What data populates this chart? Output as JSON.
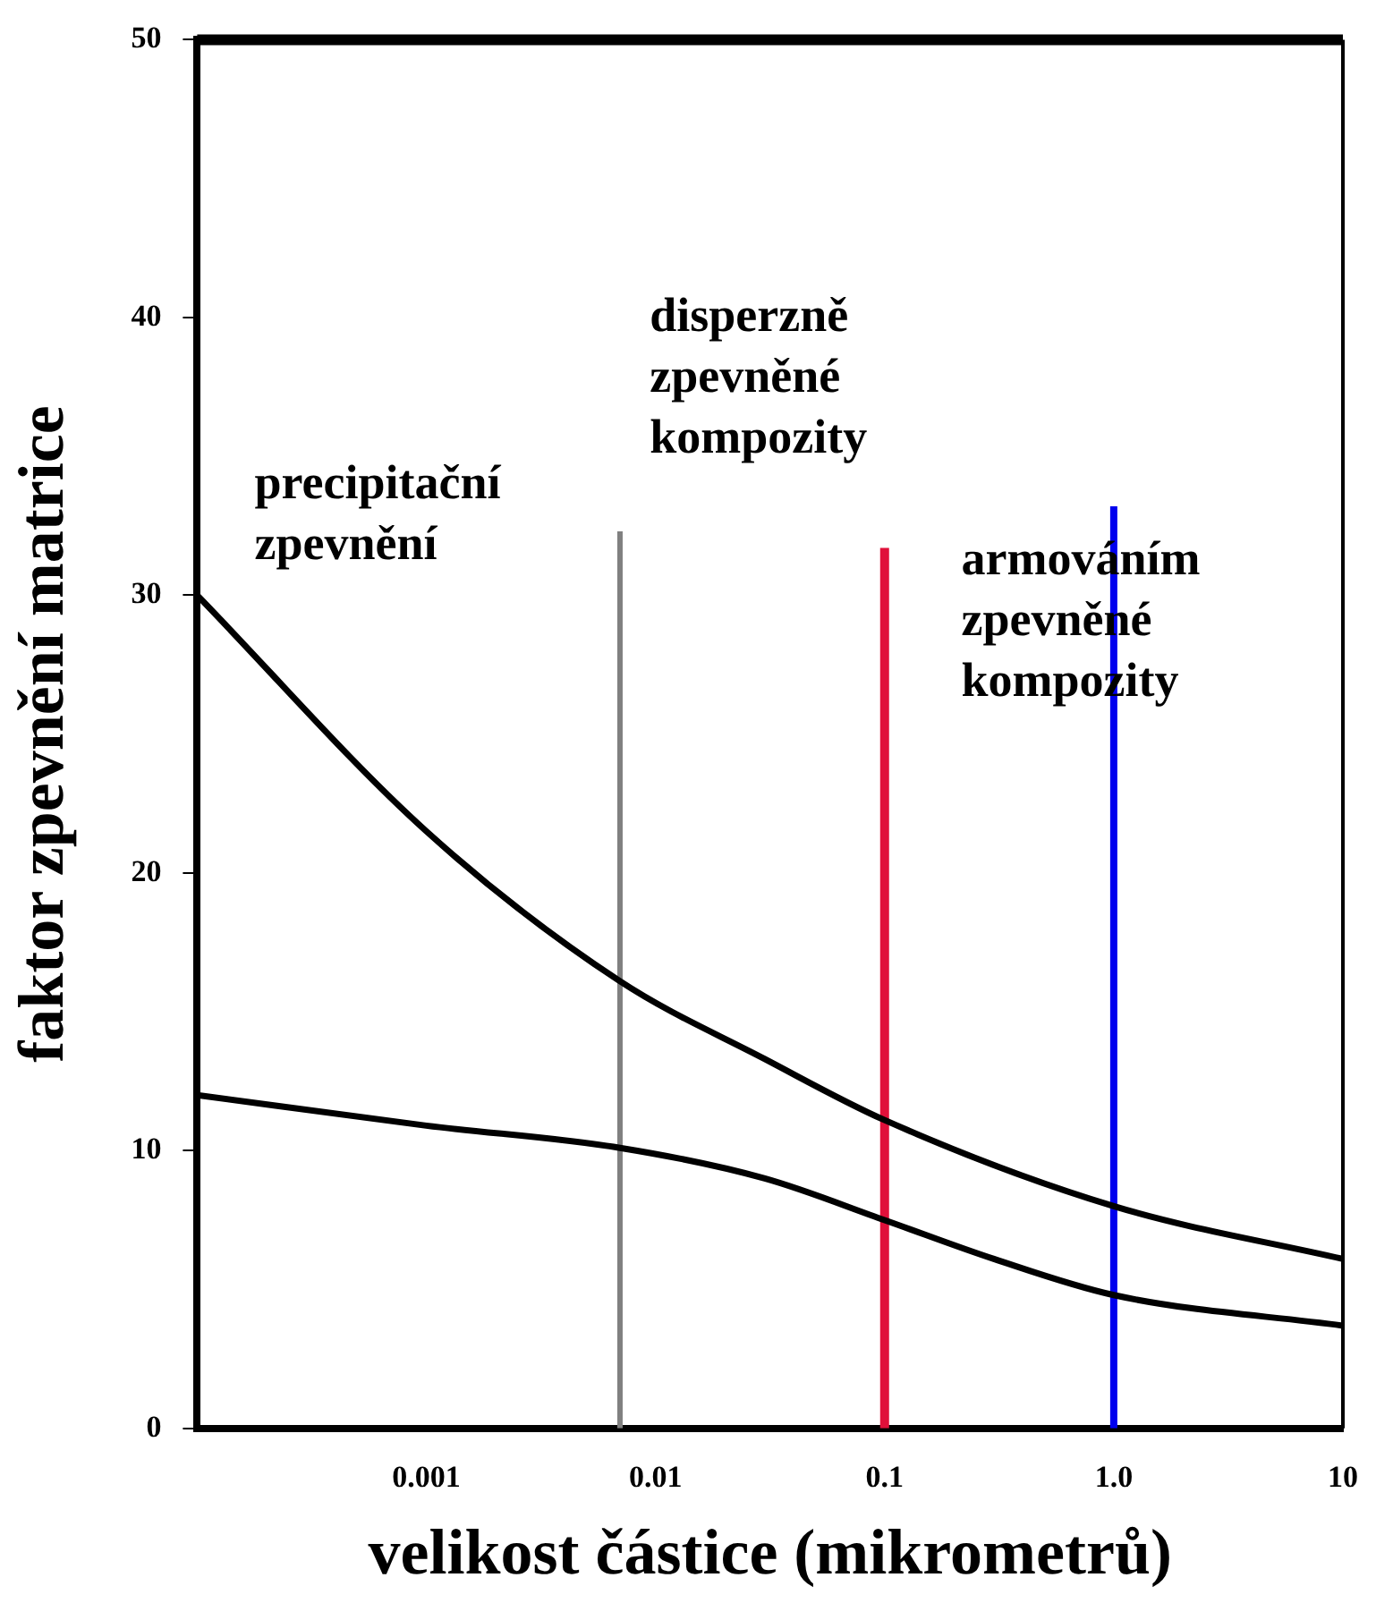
{
  "chart_data": {
    "type": "line",
    "xlabel": "velikost částice (mikrometrů)",
    "ylabel": "faktor zpevnění matrice",
    "log": "x",
    "xlim": [
      0.0001,
      10
    ],
    "xticks": [
      {
        "value": 0.001,
        "label": "0.001"
      },
      {
        "value": 0.01,
        "label": "0.01"
      },
      {
        "value": 0.1,
        "label": "0.1"
      },
      {
        "value": 1,
        "label": "1.0"
      },
      {
        "value": 10,
        "label": "10"
      }
    ],
    "ylim": [
      0,
      50
    ],
    "yticks": [
      0,
      10,
      20,
      30,
      40,
      50
    ],
    "grid": false,
    "legend": false,
    "marker": "none",
    "line_style": "solid",
    "series": [
      {
        "color": "#000000",
        "x": [
          0.0001,
          0.001,
          0.007,
          0.03,
          0.1,
          1,
          10
        ],
        "values": [
          30,
          21.5,
          16.1,
          13.3,
          11.1,
          8,
          6.1
        ]
      },
      {
        "color": "#000000",
        "x": [
          0.0001,
          0.001,
          0.007,
          0.03,
          0.1,
          0.3,
          1,
          10
        ],
        "values": [
          12,
          10.9,
          10.1,
          9,
          7.5,
          6.1,
          4.8,
          3.7
        ]
      },
      {
        "color": "#808080",
        "x": [
          0.007,
          0.007
        ],
        "values": [
          0,
          32.3
        ]
      },
      {
        "color": "#e0103a",
        "x": [
          0.1,
          0.1
        ],
        "values": [
          0,
          31.7
        ]
      },
      {
        "color": "#0000ee",
        "x": [
          1,
          1
        ],
        "values": [
          0,
          33.2
        ]
      }
    ],
    "annotations": [
      "precipitační\nzpevnění",
      "disperzně\nzpevněné\nkompozity",
      "armováním\nzpevněné\nkompozity"
    ]
  }
}
